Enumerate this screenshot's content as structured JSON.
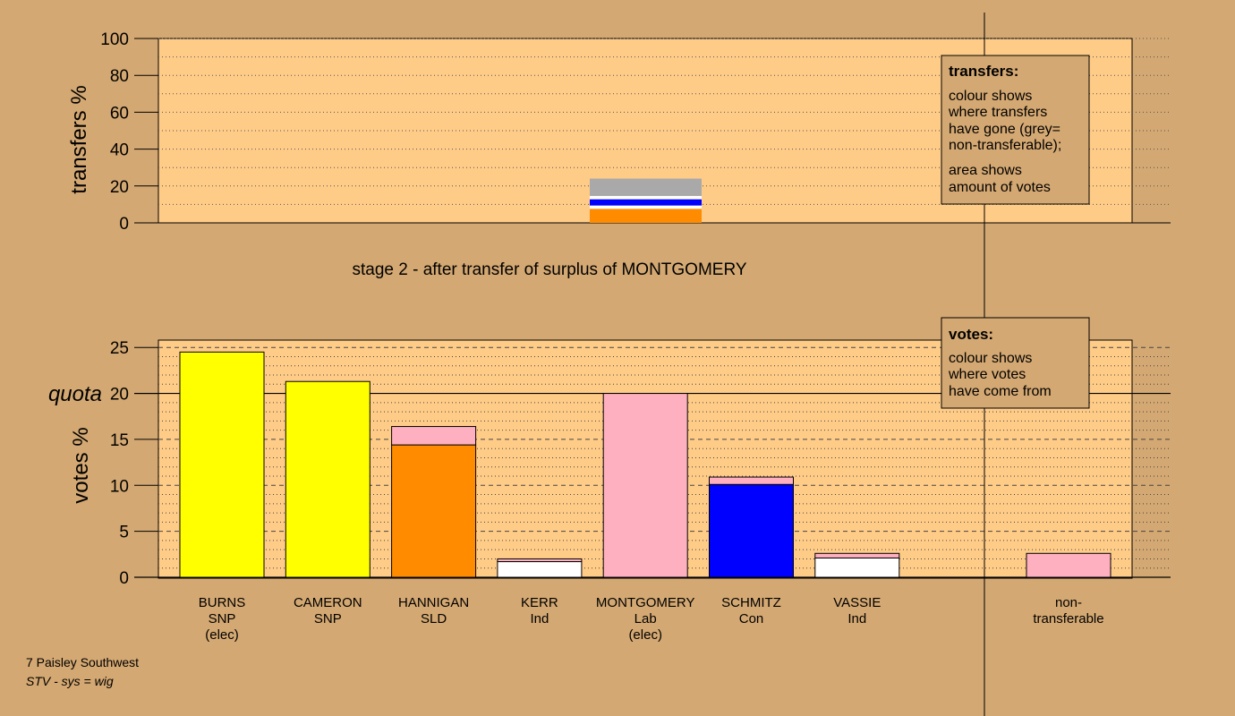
{
  "stage_title": "stage 2 - after transfer of surplus of MONTGOMERY",
  "footer": {
    "line1": "7 Paisley Southwest",
    "line2": "STV - sys = wig"
  },
  "colors": {
    "background": "#d4a872",
    "plot_area": "#ffcc88",
    "SNP": "#ffff00",
    "SLD": "#ff8c00",
    "Lab": "#ffb0c0",
    "Con": "#0000ff",
    "Ind": "#ffffff",
    "non_transferable": "#a9a9a9"
  },
  "legend_transfers": {
    "title": "transfers:",
    "lines": [
      "colour shows",
      "where transfers",
      "have gone (grey=",
      "non-transferable);"
    ],
    "lines2": [
      "area shows",
      "amount of votes"
    ]
  },
  "legend_votes": {
    "title": "votes:",
    "lines": [
      "colour shows",
      "where votes",
      "have come from"
    ]
  },
  "chart_data": [
    {
      "type": "bar",
      "title": "",
      "ylabel": "transfers %",
      "ylim": [
        0,
        100
      ],
      "yticks": [
        0,
        20,
        40,
        60,
        80,
        100
      ],
      "grid": true,
      "categories": [
        "MONTGOMERY"
      ],
      "stacked_segments": [
        {
          "label": "HANNIGAN",
          "party": "SLD",
          "value": 7.6,
          "color": "#ff8c00"
        },
        {
          "label": "KERR",
          "party": "Ind",
          "value": 1.8,
          "color": "#ffffff"
        },
        {
          "label": "SCHMITZ",
          "party": "Con",
          "value": 3.4,
          "color": "#0000ff"
        },
        {
          "label": "VASSIE",
          "party": "Ind",
          "value": 1.8,
          "color": "#ffffff"
        },
        {
          "label": "non-transferable",
          "party": "",
          "value": 9.4,
          "color": "#a9a9a9"
        }
      ]
    },
    {
      "type": "bar",
      "title": "",
      "ylabel": "votes %",
      "ylim": [
        0,
        25
      ],
      "yticks": [
        0,
        5,
        10,
        15,
        20,
        25
      ],
      "quota": {
        "label": "quota",
        "value": 20
      },
      "grid": true,
      "candidates": [
        {
          "name": "BURNS",
          "party": "SNP",
          "note": "(elec)",
          "segments": [
            {
              "from": "own",
              "value": 24.5,
              "color": "#ffff00"
            }
          ]
        },
        {
          "name": "CAMERON",
          "party": "SNP",
          "note": "",
          "segments": [
            {
              "from": "own",
              "value": 21.3,
              "color": "#ffff00"
            }
          ]
        },
        {
          "name": "HANNIGAN",
          "party": "SLD",
          "note": "",
          "segments": [
            {
              "from": "own",
              "value": 14.4,
              "color": "#ff8c00"
            },
            {
              "from": "MONTGOMERY",
              "value": 2.0,
              "color": "#ffb0c0"
            }
          ]
        },
        {
          "name": "KERR",
          "party": "Ind",
          "note": "",
          "segments": [
            {
              "from": "own",
              "value": 1.7,
              "color": "#ffffff"
            },
            {
              "from": "MONTGOMERY",
              "value": 0.3,
              "color": "#ffb0c0"
            }
          ]
        },
        {
          "name": "MONTGOMERY",
          "party": "Lab",
          "note": "(elec)",
          "segments": [
            {
              "from": "own",
              "value": 20.0,
              "color": "#ffb0c0"
            }
          ]
        },
        {
          "name": "SCHMITZ",
          "party": "Con",
          "note": "",
          "segments": [
            {
              "from": "own",
              "value": 10.1,
              "color": "#0000ff"
            },
            {
              "from": "MONTGOMERY",
              "value": 0.8,
              "color": "#ffb0c0"
            }
          ]
        },
        {
          "name": "VASSIE",
          "party": "Ind",
          "note": "",
          "segments": [
            {
              "from": "own",
              "value": 2.1,
              "color": "#ffffff"
            },
            {
              "from": "MONTGOMERY",
              "value": 0.5,
              "color": "#ffb0c0"
            }
          ]
        }
      ],
      "non_transferable": {
        "name": "non-",
        "name2": "transferable",
        "segments": [
          {
            "from": "MONTGOMERY",
            "value": 2.6,
            "color": "#ffb0c0"
          }
        ]
      }
    }
  ]
}
